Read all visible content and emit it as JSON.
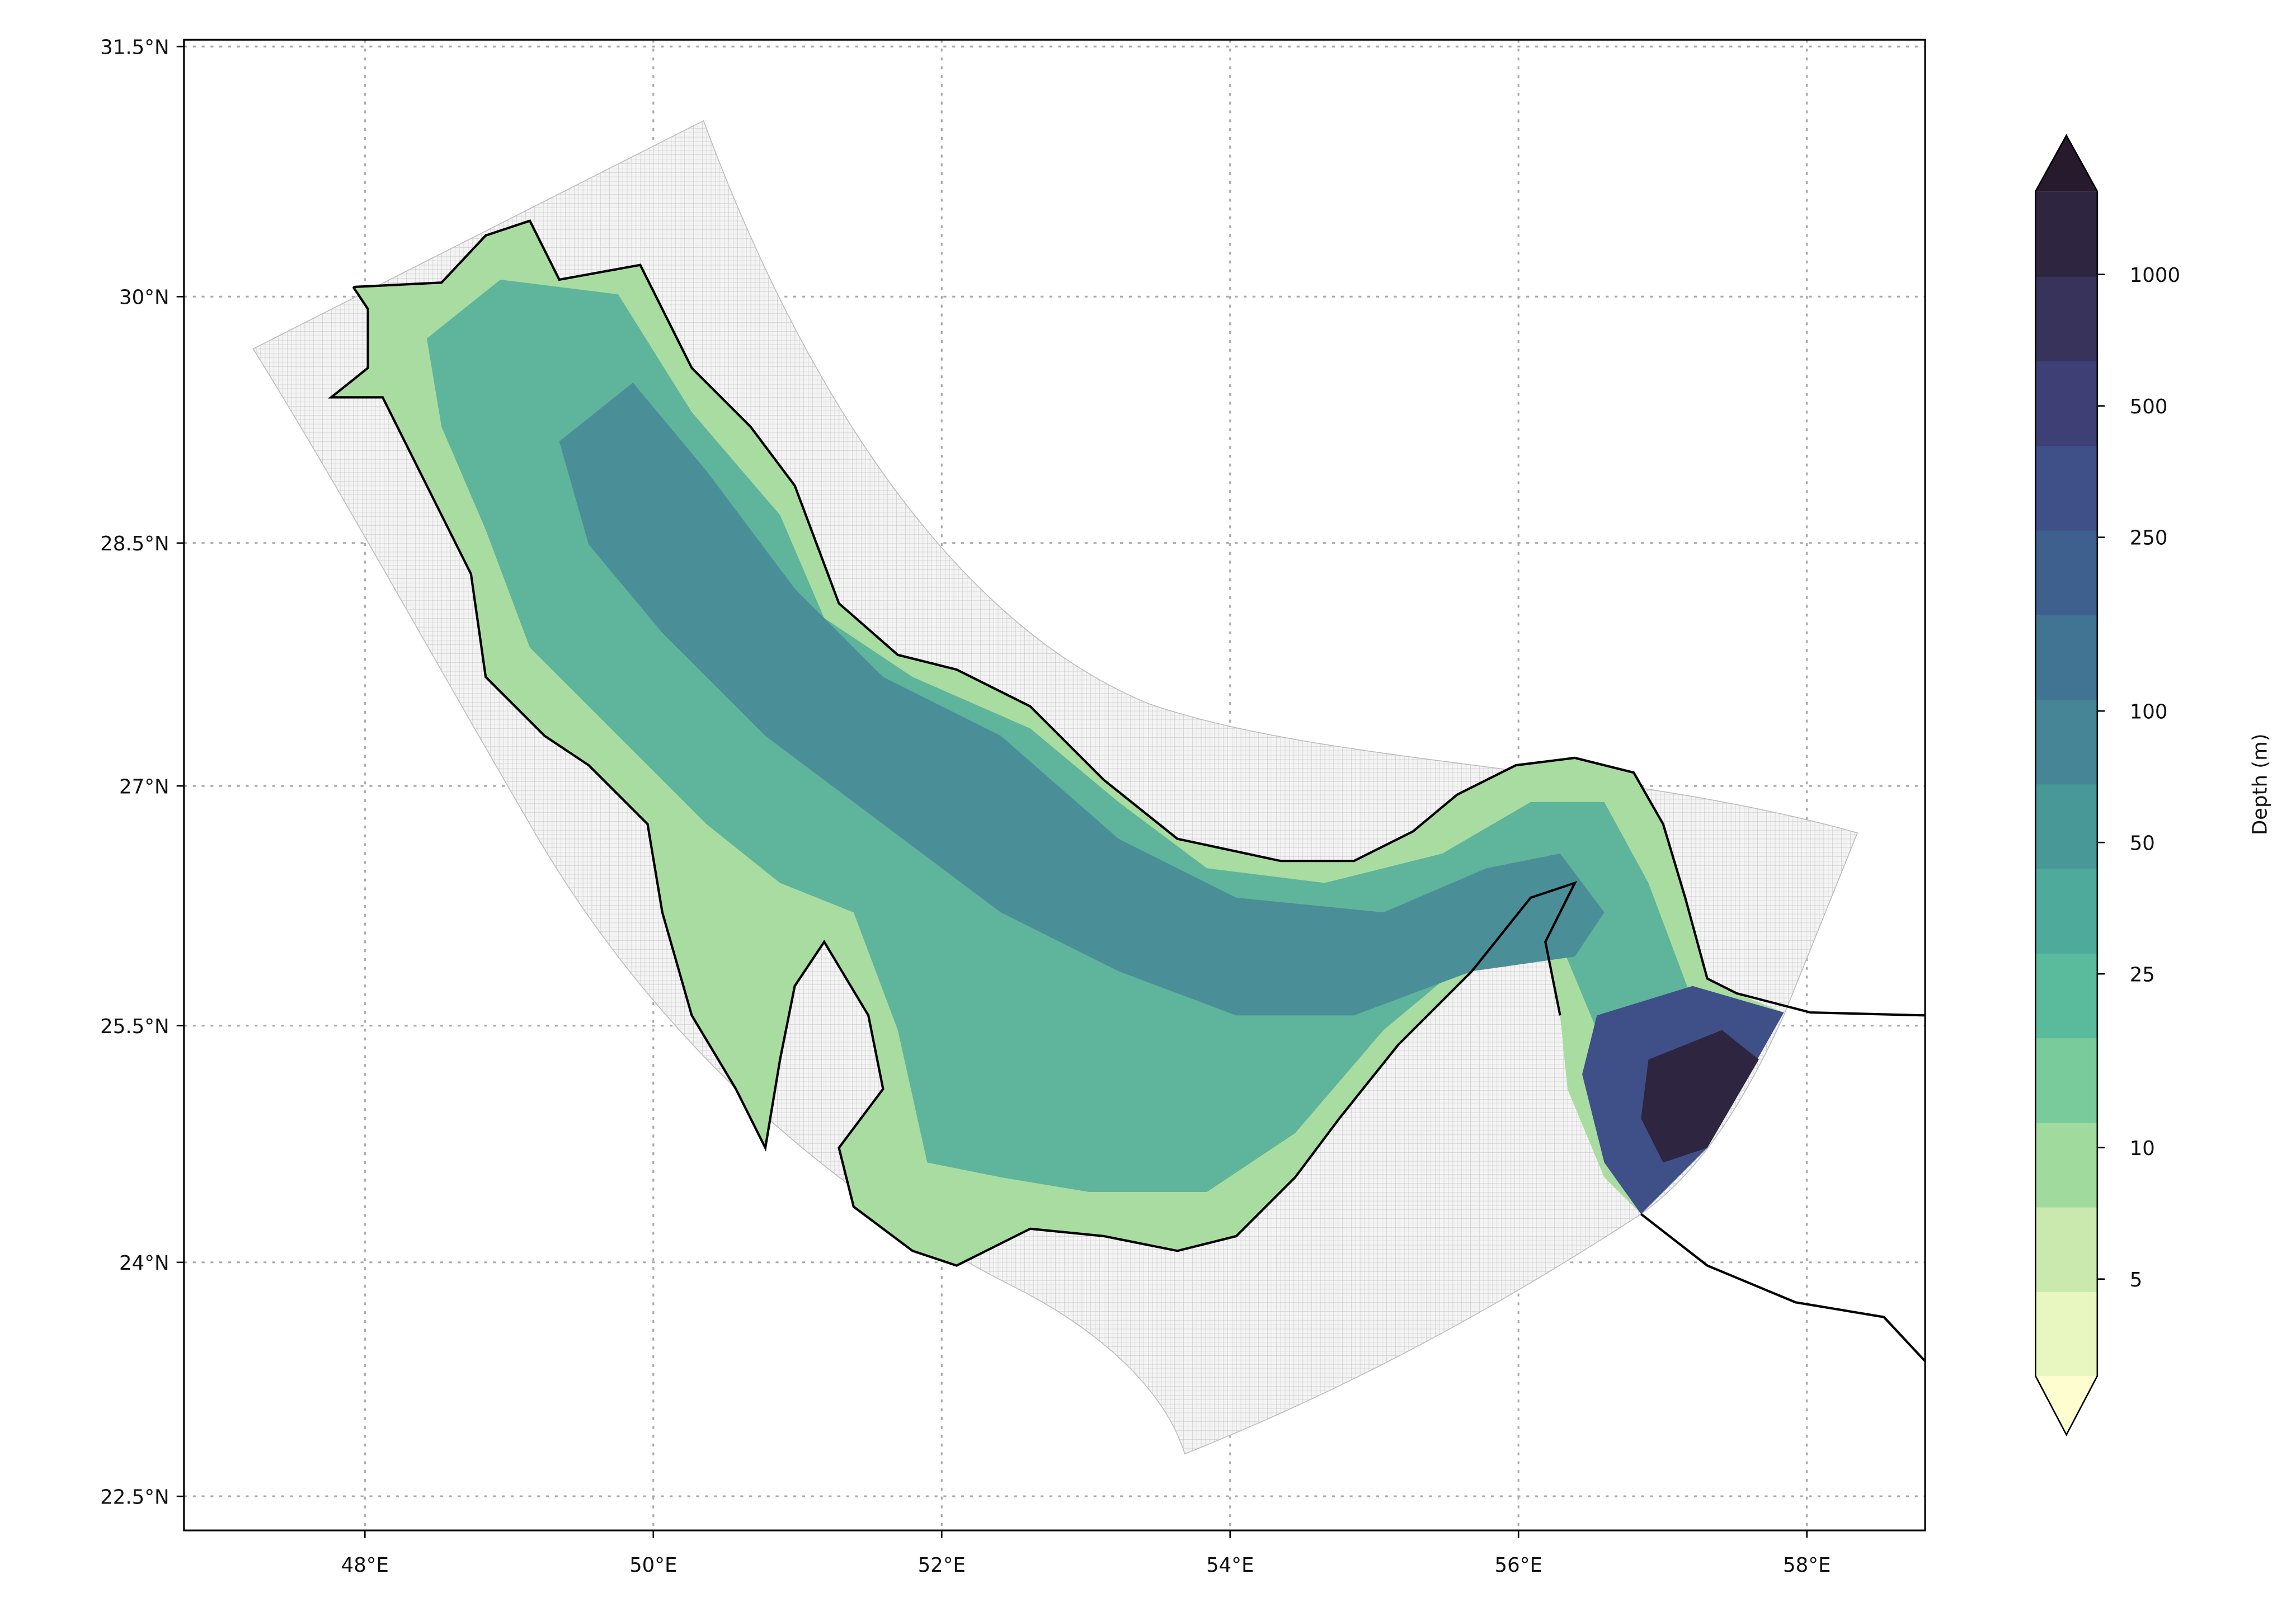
{
  "chart_data": {
    "type": "map",
    "projection": "mercator",
    "xlim": [
      46.745,
      58.82
    ],
    "ylim": [
      22.28,
      31.54
    ],
    "grid": true,
    "xticks": [
      {
        "value": 48,
        "label": "48°E"
      },
      {
        "value": 50,
        "label": "50°E"
      },
      {
        "value": 52,
        "label": "52°E"
      },
      {
        "value": 54,
        "label": "54°E"
      },
      {
        "value": 56,
        "label": "56°E"
      },
      {
        "value": 58,
        "label": "58°E"
      }
    ],
    "yticks": [
      {
        "value": 22.5,
        "label": "22.5°N"
      },
      {
        "value": 24,
        "label": "24°N"
      },
      {
        "value": 25.5,
        "label": "25.5°N"
      },
      {
        "value": 27,
        "label": "27°N"
      },
      {
        "value": 28.5,
        "label": "28.5°N"
      },
      {
        "value": 30,
        "label": "30°N"
      },
      {
        "value": 31.5,
        "label": "31.5°N"
      }
    ],
    "colorbar": {
      "label": "Depth (m)",
      "log": true,
      "lim": [
        3,
        1550
      ],
      "ticks": [
        5,
        10,
        25,
        50,
        100,
        250,
        500,
        1000
      ],
      "colors": [
        "#e8f6bf",
        "#c9e9ae",
        "#a1da9d",
        "#79cb9c",
        "#5abb9c",
        "#4eaa9b",
        "#499898",
        "#458595",
        "#417392",
        "#3d608e",
        "#3f4f88",
        "#3e3f74",
        "#37335b",
        "#2e2540"
      ],
      "under_color": "#fdfdd0",
      "over_color": "#281a2d"
    }
  }
}
